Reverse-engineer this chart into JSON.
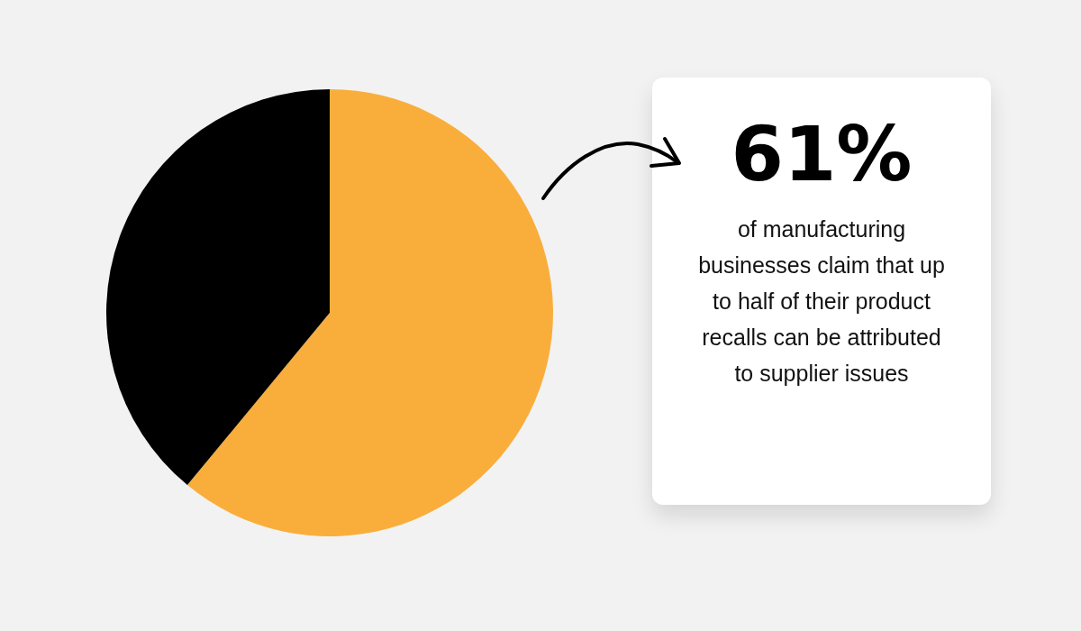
{
  "chart_data": {
    "type": "pie",
    "categories": [
      null,
      null
    ],
    "values": [
      61,
      39
    ],
    "colors": [
      "#f9ae3c",
      "#000000"
    ],
    "value_labels": [
      "61%",
      null
    ],
    "annotations": [
      "of manufacturing businesses claim that up to half of their product recalls can be attributed to supplier issues"
    ]
  }
}
